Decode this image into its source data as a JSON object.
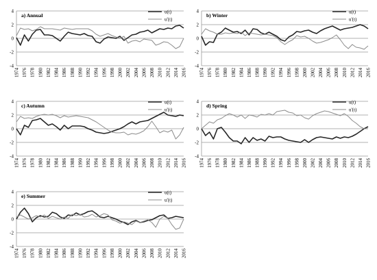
{
  "chart_data": [
    {
      "type": "line",
      "title": "a) Annual",
      "x": [
        1974,
        1975,
        1976,
        1977,
        1978,
        1979,
        1980,
        1981,
        1982,
        1983,
        1984,
        1985,
        1986,
        1987,
        1988,
        1989,
        1990,
        1991,
        1992,
        1993,
        1994,
        1995,
        1996,
        1997,
        1998,
        1999,
        2000,
        2001,
        2002,
        2003,
        2004,
        2005,
        2006,
        2007,
        2008,
        2009,
        2010,
        2011,
        2012,
        2013,
        2014,
        2015,
        2016
      ],
      "ylim": [
        -4,
        4
      ],
      "yticks": [
        -4,
        -2,
        0,
        2,
        4
      ],
      "xticks": [
        1974,
        1976,
        1978,
        1980,
        1982,
        1984,
        1986,
        1988,
        1990,
        1992,
        1994,
        1996,
        1998,
        2000,
        2002,
        2004,
        2006,
        2008,
        2010,
        2012,
        2014,
        2016
      ],
      "series": [
        {
          "name": "u(t)",
          "values": [
            0.1,
            -1.0,
            0.5,
            -0.4,
            0.6,
            1.2,
            1.3,
            0.5,
            0.5,
            0.4,
            0.0,
            -0.4,
            0.3,
            0.9,
            0.7,
            0.6,
            0.5,
            0.7,
            0.4,
            0.3,
            -0.5,
            -0.7,
            -0.1,
            0.2,
            0.1,
            0.0,
            0.3,
            -0.3,
            0.1,
            0.5,
            0.6,
            0.9,
            1.0,
            1.2,
            0.8,
            1.1,
            1.4,
            1.3,
            1.5,
            1.4,
            1.8,
            1.9,
            1.5
          ]
        },
        {
          "name": "u'(t)",
          "values": [
            0.4,
            1.5,
            1.3,
            1.4,
            1.1,
            1.3,
            1.7,
            1.4,
            1.4,
            1.4,
            1.3,
            1.2,
            1.5,
            1.4,
            1.3,
            1.4,
            1.4,
            1.4,
            1.4,
            1.1,
            0.6,
            0.3,
            0.5,
            0.7,
            0.4,
            0.2,
            0.0,
            0.3,
            -0.7,
            -0.4,
            -0.3,
            -0.5,
            -0.1,
            -0.2,
            -0.3,
            -1.0,
            -0.8,
            -0.5,
            -0.6,
            -1.0,
            -1.5,
            -1.2,
            0.0
          ]
        }
      ],
      "legend": "top-right"
    },
    {
      "type": "line",
      "title": "b) Winter",
      "x": [
        1974,
        1975,
        1976,
        1977,
        1978,
        1979,
        1980,
        1981,
        1982,
        1983,
        1984,
        1985,
        1986,
        1987,
        1988,
        1989,
        1990,
        1991,
        1992,
        1993,
        1994,
        1995,
        1996,
        1997,
        1998,
        1999,
        2000,
        2001,
        2002,
        2003,
        2004,
        2005,
        2006,
        2007,
        2008,
        2009,
        2010,
        2011,
        2012,
        2013,
        2014,
        2015,
        2016
      ],
      "ylim": [
        -4,
        4
      ],
      "yticks": [
        -4,
        -2,
        0,
        2,
        4
      ],
      "xticks": [
        1974,
        1976,
        1978,
        1980,
        1982,
        1984,
        1986,
        1988,
        1990,
        1992,
        1994,
        1996,
        1998,
        2000,
        2002,
        2004,
        2006,
        2008,
        2010,
        2012,
        2014,
        2016
      ],
      "series": [
        {
          "name": "u(t)",
          "values": [
            0.3,
            -1.0,
            -0.5,
            -0.6,
            0.6,
            0.9,
            1.5,
            1.2,
            0.9,
            1.0,
            0.7,
            1.2,
            0.5,
            1.4,
            1.3,
            0.8,
            0.6,
            0.9,
            0.6,
            0.3,
            -0.2,
            -0.4,
            0.2,
            0.5,
            1.0,
            0.9,
            1.1,
            1.2,
            0.9,
            0.7,
            1.1,
            1.4,
            1.6,
            1.8,
            1.5,
            1.2,
            1.4,
            1.5,
            1.6,
            1.8,
            2.0,
            1.8,
            1.4
          ]
        },
        {
          "name": "u'(t)",
          "values": [
            0.6,
            1.4,
            1.1,
            0.9,
            0.6,
            0.6,
            0.8,
            0.7,
            0.8,
            0.7,
            0.9,
            0.4,
            0.8,
            0.7,
            0.6,
            0.5,
            0.6,
            0.5,
            0.4,
            0.1,
            -0.5,
            -0.9,
            -0.5,
            -0.2,
            0.4,
            0.2,
            0.3,
            0.0,
            -0.4,
            -0.7,
            -0.6,
            -0.4,
            -0.2,
            0.1,
            0.5,
            -0.2,
            -1.0,
            -1.5,
            -0.9,
            -1.3,
            -1.4,
            -1.6,
            -1.1
          ]
        }
      ],
      "legend": "top-right"
    },
    {
      "type": "line",
      "title": "c) Autumn",
      "x": [
        1974,
        1975,
        1976,
        1977,
        1978,
        1979,
        1980,
        1981,
        1982,
        1983,
        1984,
        1985,
        1986,
        1987,
        1988,
        1989,
        1990,
        1991,
        1992,
        1993,
        1994,
        1995,
        1996,
        1997,
        1998,
        1999,
        2000,
        2001,
        2002,
        2003,
        2004,
        2005,
        2006,
        2007,
        2008,
        2009,
        2010,
        2011,
        2012,
        2013,
        2014,
        2015,
        2016
      ],
      "ylim": [
        -4,
        4
      ],
      "yticks": [
        -4,
        -2,
        0,
        2,
        4
      ],
      "xticks": [
        1974,
        1976,
        1978,
        1980,
        1982,
        1984,
        1986,
        1988,
        1990,
        1992,
        1994,
        1996,
        1998,
        2000,
        2002,
        2004,
        2006,
        2008,
        2010,
        2012,
        2014,
        2016
      ],
      "series": [
        {
          "name": "u(t)",
          "values": [
            0.0,
            -0.9,
            0.5,
            0.2,
            1.2,
            1.3,
            1.5,
            1.0,
            0.5,
            0.7,
            0.3,
            -0.2,
            0.5,
            0.0,
            0.4,
            0.4,
            0.4,
            0.3,
            0.0,
            -0.2,
            -0.5,
            -0.6,
            -0.7,
            -0.6,
            -0.4,
            -0.2,
            0.0,
            0.3,
            0.7,
            1.0,
            0.7,
            1.0,
            1.1,
            1.2,
            1.5,
            1.8,
            2.1,
            2.4,
            2.0,
            1.9,
            1.8,
            2.0,
            1.9
          ]
        },
        {
          "name": "u'(t)",
          "values": [
            1.0,
            1.8,
            1.5,
            1.6,
            1.5,
            1.8,
            2.0,
            2.1,
            2.0,
            2.1,
            1.9,
            1.6,
            1.9,
            1.7,
            1.8,
            1.9,
            1.8,
            1.7,
            1.6,
            1.3,
            1.0,
            0.6,
            0.2,
            -0.2,
            -0.5,
            -0.6,
            -0.6,
            -0.5,
            -0.9,
            -0.7,
            -0.8,
            -0.6,
            -0.3,
            0.3,
            1.1,
            0.3,
            -0.6,
            -0.3,
            -0.5,
            -0.2,
            -1.5,
            -0.9,
            0.2
          ]
        }
      ],
      "legend": "top-right"
    },
    {
      "type": "line",
      "title": "d) Spring",
      "x": [
        1974,
        1975,
        1976,
        1977,
        1978,
        1979,
        1980,
        1981,
        1982,
        1983,
        1984,
        1985,
        1986,
        1987,
        1988,
        1989,
        1990,
        1991,
        1992,
        1993,
        1994,
        1995,
        1996,
        1997,
        1998,
        1999,
        2000,
        2001,
        2002,
        2003,
        2004,
        2005,
        2006,
        2007,
        2008,
        2009,
        2010,
        2011,
        2012,
        2013,
        2014,
        2015,
        2016
      ],
      "ylim": [
        -4,
        4
      ],
      "yticks": [
        -4,
        -2,
        0,
        2,
        4
      ],
      "xticks": [
        1974,
        1976,
        1978,
        1980,
        1982,
        1984,
        1986,
        1988,
        1990,
        1992,
        1994,
        1996,
        1998,
        2000,
        2002,
        2004,
        2006,
        2008,
        2010,
        2012,
        2014,
        2016
      ],
      "series": [
        {
          "name": "u(t)",
          "values": [
            0.0,
            -1.0,
            -0.5,
            -1.5,
            0.0,
            0.2,
            -0.5,
            -1.3,
            -1.8,
            -1.8,
            -2.2,
            -1.3,
            -2.0,
            -1.3,
            -1.7,
            -1.5,
            -1.8,
            -1.1,
            -1.3,
            -1.2,
            -1.2,
            -1.5,
            -1.7,
            -1.8,
            -1.9,
            -2.0,
            -1.6,
            -2.0,
            -1.6,
            -1.3,
            -1.2,
            -1.3,
            -1.4,
            -1.5,
            -1.2,
            -1.4,
            -1.2,
            -1.3,
            -1.1,
            -0.8,
            -0.4,
            0.0,
            0.3
          ]
        },
        {
          "name": "u'(t)",
          "values": [
            0.0,
            0.5,
            1.0,
            0.8,
            1.3,
            1.5,
            1.9,
            2.2,
            2.0,
            1.7,
            2.0,
            1.5,
            2.0,
            1.9,
            1.7,
            2.1,
            2.0,
            2.2,
            2.0,
            2.5,
            2.6,
            2.7,
            2.4,
            2.3,
            1.9,
            2.0,
            1.6,
            1.4,
            1.9,
            2.2,
            2.4,
            2.6,
            2.5,
            2.3,
            2.1,
            1.9,
            2.2,
            1.8,
            1.2,
            0.8,
            0.3,
            0.0,
            0.0
          ]
        }
      ],
      "legend": "top-right"
    },
    {
      "type": "line",
      "title": "e) Summer",
      "x": [
        1974,
        1975,
        1976,
        1977,
        1978,
        1979,
        1980,
        1981,
        1982,
        1983,
        1984,
        1985,
        1986,
        1987,
        1988,
        1989,
        1990,
        1991,
        1992,
        1993,
        1994,
        1995,
        1996,
        1997,
        1998,
        1999,
        2000,
        2001,
        2002,
        2003,
        2004,
        2005,
        2006,
        2007,
        2008,
        2009,
        2010,
        2011,
        2012,
        2013,
        2014,
        2015,
        2016
      ],
      "ylim": [
        -4,
        4
      ],
      "yticks": [
        -4,
        -2,
        0,
        2,
        4
      ],
      "xticks": [
        1974,
        1976,
        1978,
        1980,
        1982,
        1984,
        1986,
        1988,
        1990,
        1992,
        1994,
        1996,
        1998,
        2000,
        2002,
        2004,
        2006,
        2008,
        2010,
        2012,
        2014,
        2016
      ],
      "series": [
        {
          "name": "u(t)",
          "values": [
            0.0,
            1.0,
            1.6,
            0.8,
            -0.4,
            0.2,
            0.5,
            0.3,
            0.4,
            1.0,
            0.8,
            0.3,
            0.1,
            0.6,
            0.5,
            0.9,
            0.6,
            0.8,
            1.1,
            1.2,
            0.8,
            0.3,
            0.2,
            0.4,
            0.2,
            0.0,
            -0.3,
            -0.5,
            -0.8,
            -0.4,
            -0.2,
            -0.5,
            -0.4,
            -0.2,
            -0.1,
            0.2,
            0.5,
            0.6,
            0.1,
            0.2,
            0.4,
            0.3,
            0.2
          ]
        },
        {
          "name": "u'(t)",
          "values": [
            0.3,
            0.6,
            0.3,
            0.0,
            0.2,
            0.5,
            0.3,
            0.6,
            0.1,
            0.4,
            0.2,
            0.0,
            0.3,
            0.1,
            0.7,
            0.5,
            0.7,
            0.3,
            0.4,
            0.7,
            0.3,
            0.5,
            0.8,
            0.6,
            -0.1,
            -0.3,
            -0.6,
            -0.4,
            -0.6,
            -0.8,
            -0.3,
            -0.5,
            -0.3,
            -0.1,
            -0.5,
            -1.2,
            0.0,
            0.4,
            0.1,
            -0.8,
            -1.5,
            -1.3,
            0.0
          ]
        }
      ],
      "legend": "top-right"
    }
  ],
  "colors": {
    "u": "#262626",
    "u_prime": "#8c8c8c",
    "grid": "#999999"
  }
}
